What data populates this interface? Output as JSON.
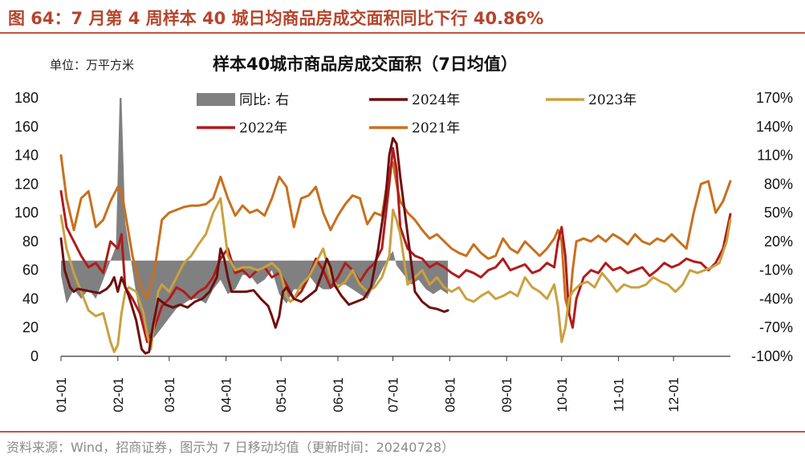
{
  "figure_title": "图 64：7 月第 4 周样本 40 城日均商品房成交面积同比下行 40.86%",
  "unit_label": "单位：万平方米",
  "source_note": "资料来源：Wind，招商证券，图示为 7 日移动均值（更新时间：20240728）",
  "chart_data": {
    "type": "line",
    "title": "样本40城市商品房成交面积（7日均值）",
    "x_ticks": [
      "01-01",
      "02-01",
      "03-01",
      "04-01",
      "05-01",
      "06-01",
      "07-01",
      "08-01",
      "09-01",
      "10-01",
      "11-01",
      "12-01"
    ],
    "x_tick_days": [
      1,
      32,
      60,
      91,
      121,
      152,
      182,
      213,
      244,
      274,
      305,
      335
    ],
    "x_range": [
      1,
      366
    ],
    "y_left": {
      "range": [
        0,
        180
      ],
      "ticks": [
        0,
        20,
        40,
        60,
        80,
        100,
        120,
        140,
        160,
        180
      ]
    },
    "y_right": {
      "range": [
        -100,
        170
      ],
      "ticks": [
        "-100%",
        "-70%",
        "-40%",
        "-10%",
        "20%",
        "50%",
        "80%",
        "110%",
        "140%",
        "170%"
      ]
    },
    "legend": [
      "同比: 右",
      "2024年",
      "2023年",
      "2022年",
      "2021年"
    ],
    "colors": {
      "yoy": "#808080",
      "y2024": "#6e0f0f",
      "y2023": "#c9a13f",
      "y2022": "#b01c1c",
      "y2021": "#c8701e"
    },
    "series": [
      {
        "name": "同比: 右",
        "axis": "right",
        "style": "bar",
        "x": [
          1,
          4,
          8,
          12,
          16,
          20,
          24,
          28,
          31,
          33,
          34,
          36,
          40,
          44,
          48,
          52,
          56,
          60,
          64,
          68,
          72,
          76,
          80,
          84,
          88,
          92,
          96,
          100,
          104,
          108,
          112,
          116,
          120,
          124,
          128,
          132,
          136,
          140,
          144,
          148,
          152,
          156,
          160,
          164,
          168,
          172,
          176,
          180,
          182,
          184,
          188,
          192,
          196,
          200,
          204,
          208,
          212
        ],
        "values": [
          -15,
          -45,
          -30,
          -40,
          -30,
          -40,
          -20,
          0,
          15,
          170,
          170,
          40,
          -10,
          -60,
          -85,
          -80,
          -70,
          -60,
          -50,
          -45,
          -40,
          -40,
          -45,
          -30,
          -20,
          -35,
          -30,
          -15,
          -15,
          -25,
          -20,
          -10,
          -35,
          -45,
          -30,
          -30,
          -15,
          -25,
          -30,
          -30,
          -25,
          -25,
          -30,
          -35,
          -40,
          -25,
          -10,
          5,
          10,
          -5,
          -15,
          -25,
          -20,
          -30,
          -35,
          -30,
          -35
        ]
      },
      {
        "name": "2024年",
        "axis": "left",
        "x": [
          1,
          3,
          6,
          8,
          10,
          14,
          18,
          22,
          26,
          28,
          30,
          32,
          34,
          38,
          42,
          45,
          47,
          49,
          51,
          54,
          58,
          62,
          66,
          70,
          74,
          78,
          82,
          86,
          88,
          90,
          92,
          94,
          98,
          102,
          106,
          110,
          114,
          116,
          118,
          120,
          122,
          124,
          128,
          132,
          136,
          140,
          144,
          146,
          148,
          150,
          154,
          158,
          162,
          166,
          170,
          174,
          178,
          180,
          182,
          184,
          186,
          190,
          194,
          198,
          202,
          206,
          210,
          212
        ],
        "values": [
          82,
          60,
          48,
          45,
          47,
          46,
          45,
          44,
          47,
          50,
          55,
          45,
          55,
          42,
          25,
          5,
          2,
          3,
          20,
          40,
          36,
          34,
          36,
          34,
          38,
          40,
          45,
          55,
          75,
          68,
          55,
          45,
          45,
          45,
          46,
          40,
          35,
          28,
          20,
          28,
          45,
          48,
          40,
          38,
          42,
          46,
          60,
          68,
          62,
          50,
          42,
          36,
          38,
          40,
          48,
          75,
          110,
          140,
          152,
          148,
          125,
          85,
          45,
          38,
          34,
          33,
          31,
          32
        ]
      },
      {
        "name": "2023年",
        "axis": "left",
        "x": [
          1,
          4,
          8,
          12,
          16,
          20,
          24,
          28,
          30,
          32,
          34,
          36,
          38,
          42,
          46,
          48,
          50,
          52,
          54,
          56,
          60,
          64,
          68,
          72,
          76,
          80,
          84,
          88,
          92,
          96,
          100,
          104,
          108,
          112,
          116,
          120,
          122,
          124,
          126,
          128,
          132,
          136,
          140,
          144,
          148,
          152,
          156,
          160,
          164,
          168,
          172,
          176,
          180,
          182,
          184,
          186,
          190,
          194,
          198,
          202,
          206,
          210,
          214,
          218,
          222,
          226,
          230,
          234,
          238,
          242,
          246,
          250,
          254,
          258,
          262,
          266,
          270,
          272,
          274,
          276,
          278,
          280,
          284,
          288,
          292,
          296,
          300,
          304,
          308,
          312,
          316,
          320,
          324,
          328,
          332,
          336,
          340,
          344,
          348,
          352,
          356,
          360,
          364,
          366
        ],
        "values": [
          98,
          75,
          58,
          45,
          32,
          28,
          30,
          10,
          3,
          8,
          30,
          45,
          48,
          45,
          30,
          15,
          5,
          25,
          45,
          50,
          45,
          55,
          65,
          70,
          78,
          85,
          100,
          110,
          70,
          60,
          62,
          62,
          60,
          62,
          65,
          60,
          52,
          42,
          38,
          40,
          50,
          55,
          65,
          75,
          55,
          48,
          52,
          60,
          50,
          45,
          48,
          55,
          70,
          102,
          95,
          85,
          50,
          55,
          60,
          50,
          55,
          48,
          45,
          48,
          40,
          38,
          42,
          45,
          40,
          42,
          45,
          42,
          55,
          48,
          45,
          40,
          50,
          35,
          10,
          20,
          40,
          45,
          50,
          52,
          48,
          58,
          52,
          45,
          50,
          48,
          48,
          50,
          55,
          52,
          50,
          45,
          50,
          60,
          58,
          60,
          62,
          65,
          80,
          95
        ]
      },
      {
        "name": "2022年",
        "axis": "left",
        "x": [
          1,
          4,
          8,
          12,
          16,
          20,
          24,
          28,
          32,
          34,
          36,
          40,
          44,
          48,
          52,
          56,
          60,
          64,
          68,
          72,
          76,
          80,
          84,
          88,
          92,
          96,
          100,
          104,
          108,
          112,
          116,
          120,
          124,
          128,
          132,
          136,
          140,
          144,
          148,
          152,
          156,
          160,
          164,
          168,
          172,
          176,
          180,
          182,
          184,
          186,
          190,
          194,
          198,
          202,
          206,
          210,
          214,
          218,
          222,
          226,
          230,
          234,
          238,
          242,
          246,
          250,
          254,
          258,
          262,
          266,
          270,
          272,
          274,
          276,
          278,
          280,
          282,
          286,
          290,
          294,
          298,
          302,
          306,
          310,
          314,
          318,
          322,
          326,
          330,
          334,
          338,
          342,
          346,
          350,
          354,
          358,
          362,
          366
        ],
        "values": [
          115,
          90,
          80,
          70,
          62,
          65,
          58,
          80,
          75,
          85,
          48,
          40,
          30,
          10,
          20,
          35,
          40,
          48,
          45,
          40,
          45,
          48,
          55,
          68,
          75,
          58,
          60,
          55,
          60,
          62,
          55,
          58,
          50,
          40,
          45,
          55,
          68,
          60,
          48,
          55,
          65,
          60,
          52,
          60,
          65,
          75,
          120,
          145,
          130,
          90,
          75,
          70,
          68,
          62,
          65,
          62,
          58,
          55,
          60,
          58,
          55,
          60,
          62,
          68,
          60,
          62,
          64,
          58,
          60,
          65,
          62,
          80,
          90,
          70,
          30,
          20,
          40,
          55,
          60,
          58,
          65,
          60,
          62,
          58,
          60,
          62,
          56,
          60,
          65,
          62,
          64,
          68,
          66,
          65,
          60,
          65,
          75,
          99
        ]
      },
      {
        "name": "2021年",
        "axis": "left",
        "x": [
          1,
          4,
          8,
          12,
          16,
          20,
          24,
          28,
          32,
          34,
          36,
          40,
          44,
          48,
          52,
          56,
          60,
          64,
          68,
          72,
          76,
          80,
          84,
          88,
          92,
          96,
          100,
          104,
          108,
          112,
          116,
          120,
          124,
          128,
          132,
          136,
          140,
          144,
          148,
          152,
          156,
          160,
          164,
          168,
          172,
          176,
          180,
          182,
          184,
          186,
          190,
          194,
          198,
          202,
          206,
          210,
          214,
          218,
          222,
          226,
          230,
          234,
          238,
          242,
          246,
          250,
          254,
          258,
          262,
          266,
          270,
          272,
          274,
          276,
          278,
          280,
          282,
          286,
          290,
          294,
          298,
          302,
          306,
          310,
          314,
          318,
          322,
          326,
          330,
          334,
          338,
          342,
          346,
          350,
          354,
          358,
          362,
          366
        ],
        "values": [
          140,
          110,
          88,
          110,
          115,
          90,
          95,
          108,
          118,
          115,
          100,
          70,
          50,
          40,
          60,
          95,
          100,
          102,
          104,
          105,
          105,
          106,
          110,
          125,
          110,
          98,
          105,
          100,
          102,
          98,
          110,
          125,
          118,
          90,
          110,
          112,
          118,
          100,
          88,
          98,
          106,
          112,
          110,
          92,
          100,
          98,
          130,
          135,
          120,
          108,
          100,
          95,
          88,
          82,
          85,
          80,
          75,
          72,
          70,
          78,
          72,
          68,
          70,
          82,
          75,
          72,
          80,
          75,
          70,
          75,
          82,
          88,
          80,
          40,
          30,
          60,
          80,
          82,
          80,
          84,
          80,
          85,
          82,
          78,
          85,
          80,
          78,
          82,
          80,
          85,
          80,
          75,
          100,
          120,
          122,
          100,
          108,
          122
        ]
      }
    ]
  }
}
